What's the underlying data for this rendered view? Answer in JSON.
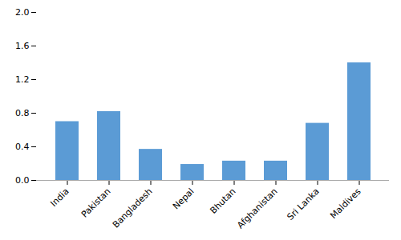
{
  "chart_data": {
    "type": "bar",
    "categories": [
      "India",
      "Pakistan",
      "Bangladesh",
      "Nepal",
      "Bhutan",
      "Afghanistan",
      "Sri Lanka",
      "Maldives"
    ],
    "values": [
      0.7,
      0.82,
      0.37,
      0.19,
      0.23,
      0.23,
      0.68,
      1.4
    ],
    "color": "#5B9BD5",
    "ylim": [
      0,
      2.0
    ],
    "yticks": [
      {
        "value": 0.0,
        "label": "0.0"
      },
      0.4,
      0.8,
      1.2,
      1.6,
      {
        "value": 2.0,
        "label": "2.0"
      }
    ],
    "grid": false
  }
}
